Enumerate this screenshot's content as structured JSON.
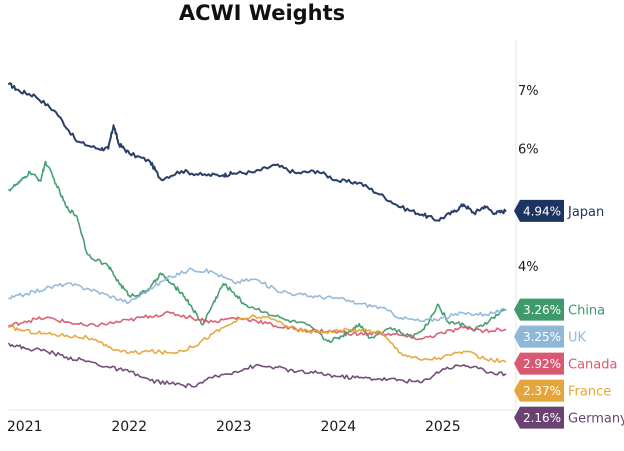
{
  "chart_data": {
    "type": "line",
    "title": "ACWI Weights",
    "xlabel": "",
    "ylabel": "",
    "x_ticks": [
      "2021",
      "2022",
      "2023",
      "2024",
      "2025"
    ],
    "x_range": [
      2020.85,
      2025.7
    ],
    "y_ticks": [
      {
        "value": 7,
        "label": "7%"
      },
      {
        "value": 6,
        "label": "6%"
      },
      {
        "value": 4,
        "label": "4%"
      }
    ],
    "ylim": [
      1.55,
      7.85
    ],
    "grid": false,
    "legend": "right-end value tags",
    "series": [
      {
        "name": "Japan",
        "color": "#1c3560",
        "end_label": "4.94%",
        "points": [
          [
            2020.85,
            7.1
          ],
          [
            2020.95,
            6.98
          ],
          [
            2021.1,
            6.9
          ],
          [
            2021.3,
            6.62
          ],
          [
            2021.5,
            6.12
          ],
          [
            2021.7,
            6.0
          ],
          [
            2021.8,
            6.0
          ],
          [
            2021.85,
            6.4
          ],
          [
            2021.9,
            6.08
          ],
          [
            2022.0,
            5.92
          ],
          [
            2022.2,
            5.78
          ],
          [
            2022.3,
            5.48
          ],
          [
            2022.5,
            5.62
          ],
          [
            2022.7,
            5.55
          ],
          [
            2022.9,
            5.55
          ],
          [
            2023.0,
            5.58
          ],
          [
            2023.2,
            5.6
          ],
          [
            2023.4,
            5.72
          ],
          [
            2023.6,
            5.58
          ],
          [
            2023.8,
            5.62
          ],
          [
            2024.0,
            5.45
          ],
          [
            2024.2,
            5.42
          ],
          [
            2024.4,
            5.22
          ],
          [
            2024.6,
            5.0
          ],
          [
            2024.8,
            4.88
          ],
          [
            2024.95,
            4.78
          ],
          [
            2025.1,
            4.92
          ],
          [
            2025.2,
            5.05
          ],
          [
            2025.3,
            4.9
          ],
          [
            2025.4,
            5.02
          ],
          [
            2025.5,
            4.9
          ],
          [
            2025.6,
            4.94
          ]
        ]
      },
      {
        "name": "China",
        "color": "#3e9a6a",
        "end_label": "3.26%",
        "points": [
          [
            2020.85,
            5.3
          ],
          [
            2020.95,
            5.42
          ],
          [
            2021.05,
            5.6
          ],
          [
            2021.15,
            5.45
          ],
          [
            2021.2,
            5.78
          ],
          [
            2021.3,
            5.4
          ],
          [
            2021.4,
            5.0
          ],
          [
            2021.5,
            4.85
          ],
          [
            2021.6,
            4.2
          ],
          [
            2021.8,
            4.0
          ],
          [
            2021.9,
            3.72
          ],
          [
            2022.0,
            3.5
          ],
          [
            2022.1,
            3.52
          ],
          [
            2022.2,
            3.62
          ],
          [
            2022.3,
            3.88
          ],
          [
            2022.4,
            3.7
          ],
          [
            2022.5,
            3.55
          ],
          [
            2022.6,
            3.3
          ],
          [
            2022.7,
            3.0
          ],
          [
            2022.8,
            3.35
          ],
          [
            2022.9,
            3.7
          ],
          [
            2023.0,
            3.55
          ],
          [
            2023.1,
            3.35
          ],
          [
            2023.3,
            3.22
          ],
          [
            2023.5,
            3.08
          ],
          [
            2023.7,
            3.0
          ],
          [
            2023.9,
            2.72
          ],
          [
            2024.0,
            2.78
          ],
          [
            2024.1,
            2.88
          ],
          [
            2024.2,
            3.02
          ],
          [
            2024.3,
            2.78
          ],
          [
            2024.5,
            2.95
          ],
          [
            2024.7,
            2.78
          ],
          [
            2024.85,
            3.0
          ],
          [
            2024.95,
            3.35
          ],
          [
            2025.05,
            3.05
          ],
          [
            2025.2,
            3.0
          ],
          [
            2025.3,
            2.9
          ],
          [
            2025.45,
            3.08
          ],
          [
            2025.6,
            3.26
          ]
        ]
      },
      {
        "name": "UK",
        "color": "#8fb7d8",
        "end_label": "3.25%",
        "points": [
          [
            2020.85,
            3.45
          ],
          [
            2021.0,
            3.52
          ],
          [
            2021.2,
            3.62
          ],
          [
            2021.4,
            3.7
          ],
          [
            2021.6,
            3.62
          ],
          [
            2021.8,
            3.5
          ],
          [
            2022.0,
            3.38
          ],
          [
            2022.2,
            3.62
          ],
          [
            2022.4,
            3.82
          ],
          [
            2022.6,
            3.95
          ],
          [
            2022.8,
            3.9
          ],
          [
            2023.0,
            3.72
          ],
          [
            2023.2,
            3.78
          ],
          [
            2023.4,
            3.6
          ],
          [
            2023.6,
            3.52
          ],
          [
            2023.8,
            3.48
          ],
          [
            2024.0,
            3.45
          ],
          [
            2024.2,
            3.36
          ],
          [
            2024.4,
            3.3
          ],
          [
            2024.6,
            3.12
          ],
          [
            2024.8,
            3.06
          ],
          [
            2025.0,
            3.12
          ],
          [
            2025.2,
            3.2
          ],
          [
            2025.4,
            3.18
          ],
          [
            2025.6,
            3.25
          ]
        ]
      },
      {
        "name": "Canada",
        "color": "#d85a70",
        "end_label": "2.92%",
        "points": [
          [
            2020.85,
            2.98
          ],
          [
            2021.0,
            3.06
          ],
          [
            2021.2,
            3.12
          ],
          [
            2021.4,
            3.05
          ],
          [
            2021.6,
            2.98
          ],
          [
            2021.8,
            3.02
          ],
          [
            2022.0,
            3.08
          ],
          [
            2022.2,
            3.15
          ],
          [
            2022.4,
            3.2
          ],
          [
            2022.6,
            3.12
          ],
          [
            2022.8,
            3.05
          ],
          [
            2023.0,
            3.12
          ],
          [
            2023.2,
            3.08
          ],
          [
            2023.4,
            2.98
          ],
          [
            2023.6,
            2.92
          ],
          [
            2023.8,
            2.9
          ],
          [
            2024.0,
            2.88
          ],
          [
            2024.2,
            2.84
          ],
          [
            2024.4,
            2.86
          ],
          [
            2024.6,
            2.82
          ],
          [
            2024.8,
            2.76
          ],
          [
            2025.0,
            2.86
          ],
          [
            2025.2,
            2.95
          ],
          [
            2025.4,
            2.9
          ],
          [
            2025.6,
            2.92
          ]
        ]
      },
      {
        "name": "France",
        "color": "#e5a53a",
        "end_label": "2.37%",
        "points": [
          [
            2020.85,
            2.96
          ],
          [
            2021.0,
            2.9
          ],
          [
            2021.2,
            2.85
          ],
          [
            2021.4,
            2.82
          ],
          [
            2021.6,
            2.78
          ],
          [
            2021.8,
            2.62
          ],
          [
            2022.0,
            2.52
          ],
          [
            2022.2,
            2.55
          ],
          [
            2022.4,
            2.52
          ],
          [
            2022.6,
            2.62
          ],
          [
            2022.8,
            2.85
          ],
          [
            2023.0,
            3.05
          ],
          [
            2023.2,
            3.15
          ],
          [
            2023.4,
            3.08
          ],
          [
            2023.6,
            2.92
          ],
          [
            2023.8,
            2.88
          ],
          [
            2024.0,
            2.9
          ],
          [
            2024.2,
            2.92
          ],
          [
            2024.4,
            2.88
          ],
          [
            2024.6,
            2.52
          ],
          [
            2024.8,
            2.4
          ],
          [
            2025.0,
            2.45
          ],
          [
            2025.2,
            2.55
          ],
          [
            2025.4,
            2.42
          ],
          [
            2025.6,
            2.37
          ]
        ]
      },
      {
        "name": "Germany",
        "color": "#6b4373",
        "end_label": "2.16%",
        "points": [
          [
            2020.85,
            2.68
          ],
          [
            2021.0,
            2.6
          ],
          [
            2021.2,
            2.56
          ],
          [
            2021.4,
            2.45
          ],
          [
            2021.6,
            2.38
          ],
          [
            2021.8,
            2.28
          ],
          [
            2022.0,
            2.2
          ],
          [
            2022.2,
            2.05
          ],
          [
            2022.4,
            2.0
          ],
          [
            2022.6,
            1.95
          ],
          [
            2022.8,
            2.1
          ],
          [
            2023.0,
            2.2
          ],
          [
            2023.2,
            2.3
          ],
          [
            2023.4,
            2.28
          ],
          [
            2023.6,
            2.2
          ],
          [
            2023.8,
            2.18
          ],
          [
            2024.0,
            2.12
          ],
          [
            2024.2,
            2.1
          ],
          [
            2024.4,
            2.08
          ],
          [
            2024.6,
            2.06
          ],
          [
            2024.8,
            2.02
          ],
          [
            2025.0,
            2.25
          ],
          [
            2025.2,
            2.32
          ],
          [
            2025.4,
            2.22
          ],
          [
            2025.6,
            2.16
          ]
        ]
      }
    ]
  }
}
